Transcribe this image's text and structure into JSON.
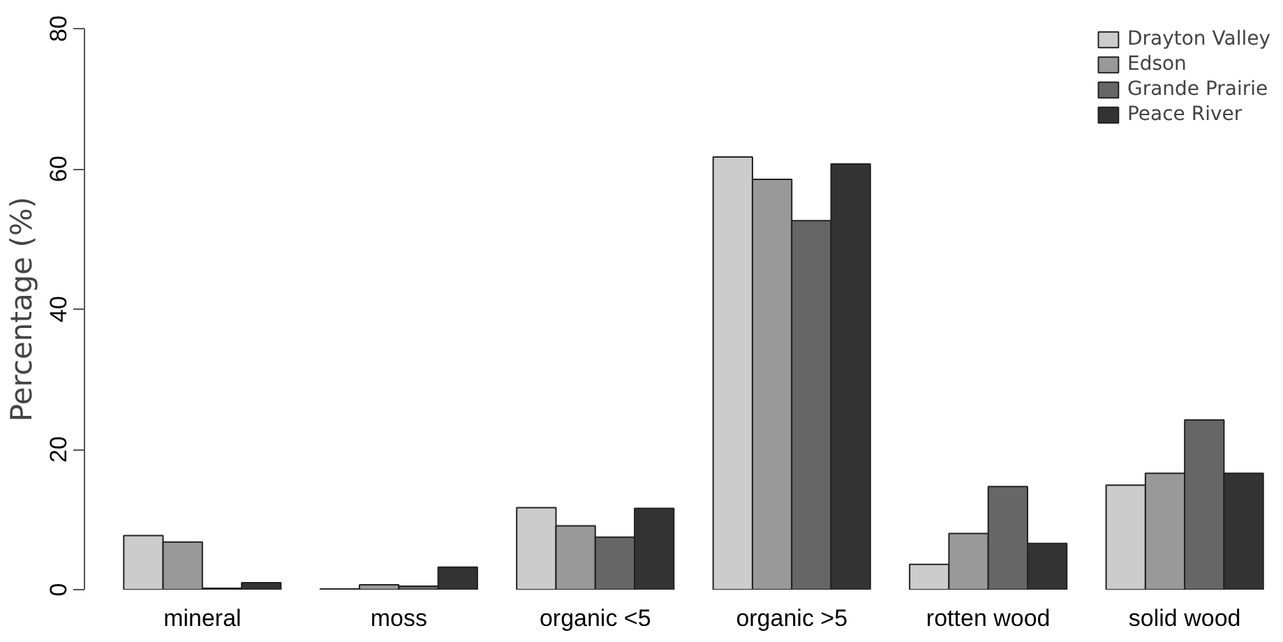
{
  "chart_data": {
    "type": "bar",
    "ylabel": "Percentage (%)",
    "categories": [
      "mineral",
      "moss",
      "organic <5",
      "organic >5",
      "rotten wood",
      "solid wood"
    ],
    "series": [
      {
        "name": "Drayton Valley",
        "color": "#cccccc",
        "values": [
          7.7,
          0.1,
          11.7,
          61.7,
          3.6,
          14.9
        ]
      },
      {
        "name": "Edson",
        "color": "#999999",
        "values": [
          6.8,
          0.7,
          9.1,
          58.5,
          8.0,
          16.6
        ]
      },
      {
        "name": "Grande Prairie",
        "color": "#666666",
        "values": [
          0.2,
          0.5,
          7.5,
          52.6,
          14.7,
          24.2
        ]
      },
      {
        "name": "Peace River",
        "color": "#333333",
        "values": [
          1.0,
          3.2,
          11.6,
          60.7,
          6.6,
          16.6
        ]
      }
    ],
    "ylim": [
      0,
      80
    ],
    "yticks": [
      0,
      20,
      40,
      60,
      80
    ],
    "grid": false,
    "legend": "top right"
  }
}
